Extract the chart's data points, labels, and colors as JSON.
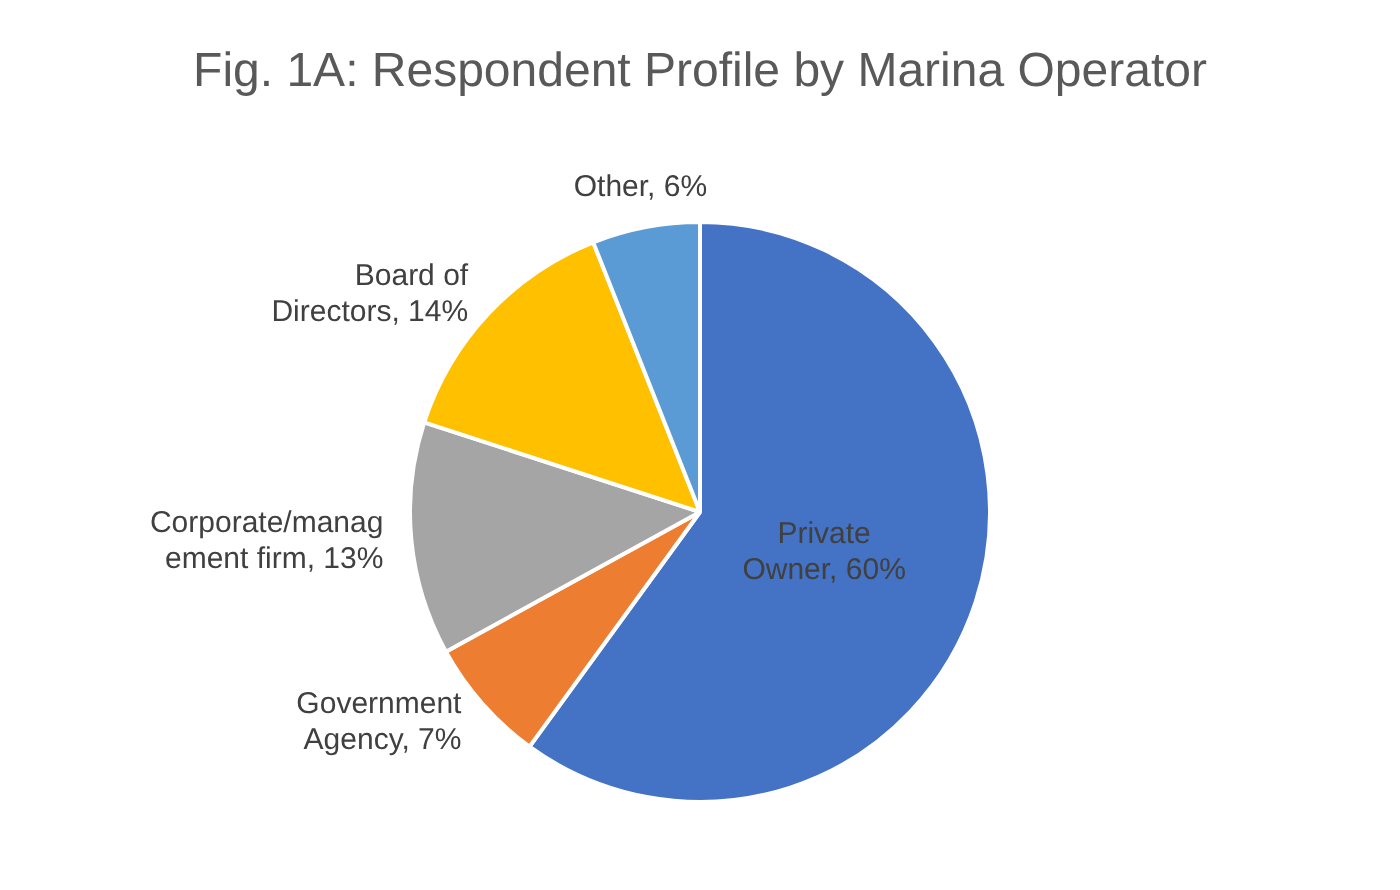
{
  "chart_data": {
    "type": "pie",
    "title": "Fig. 1A: Respondent Profile by Marina Operator",
    "categories": [
      "Private Owner",
      "Government Agency",
      "Corporate/management firm",
      "Board of Directors",
      "Other"
    ],
    "values": [
      60,
      7,
      13,
      14,
      6
    ],
    "colors": [
      "#4472c4",
      "#ed7d31",
      "#a5a5a5",
      "#ffc000",
      "#5b9bd5"
    ],
    "value_labels": [
      "60%",
      "7%",
      "13%",
      "14%",
      "6%"
    ],
    "legend": false
  }
}
